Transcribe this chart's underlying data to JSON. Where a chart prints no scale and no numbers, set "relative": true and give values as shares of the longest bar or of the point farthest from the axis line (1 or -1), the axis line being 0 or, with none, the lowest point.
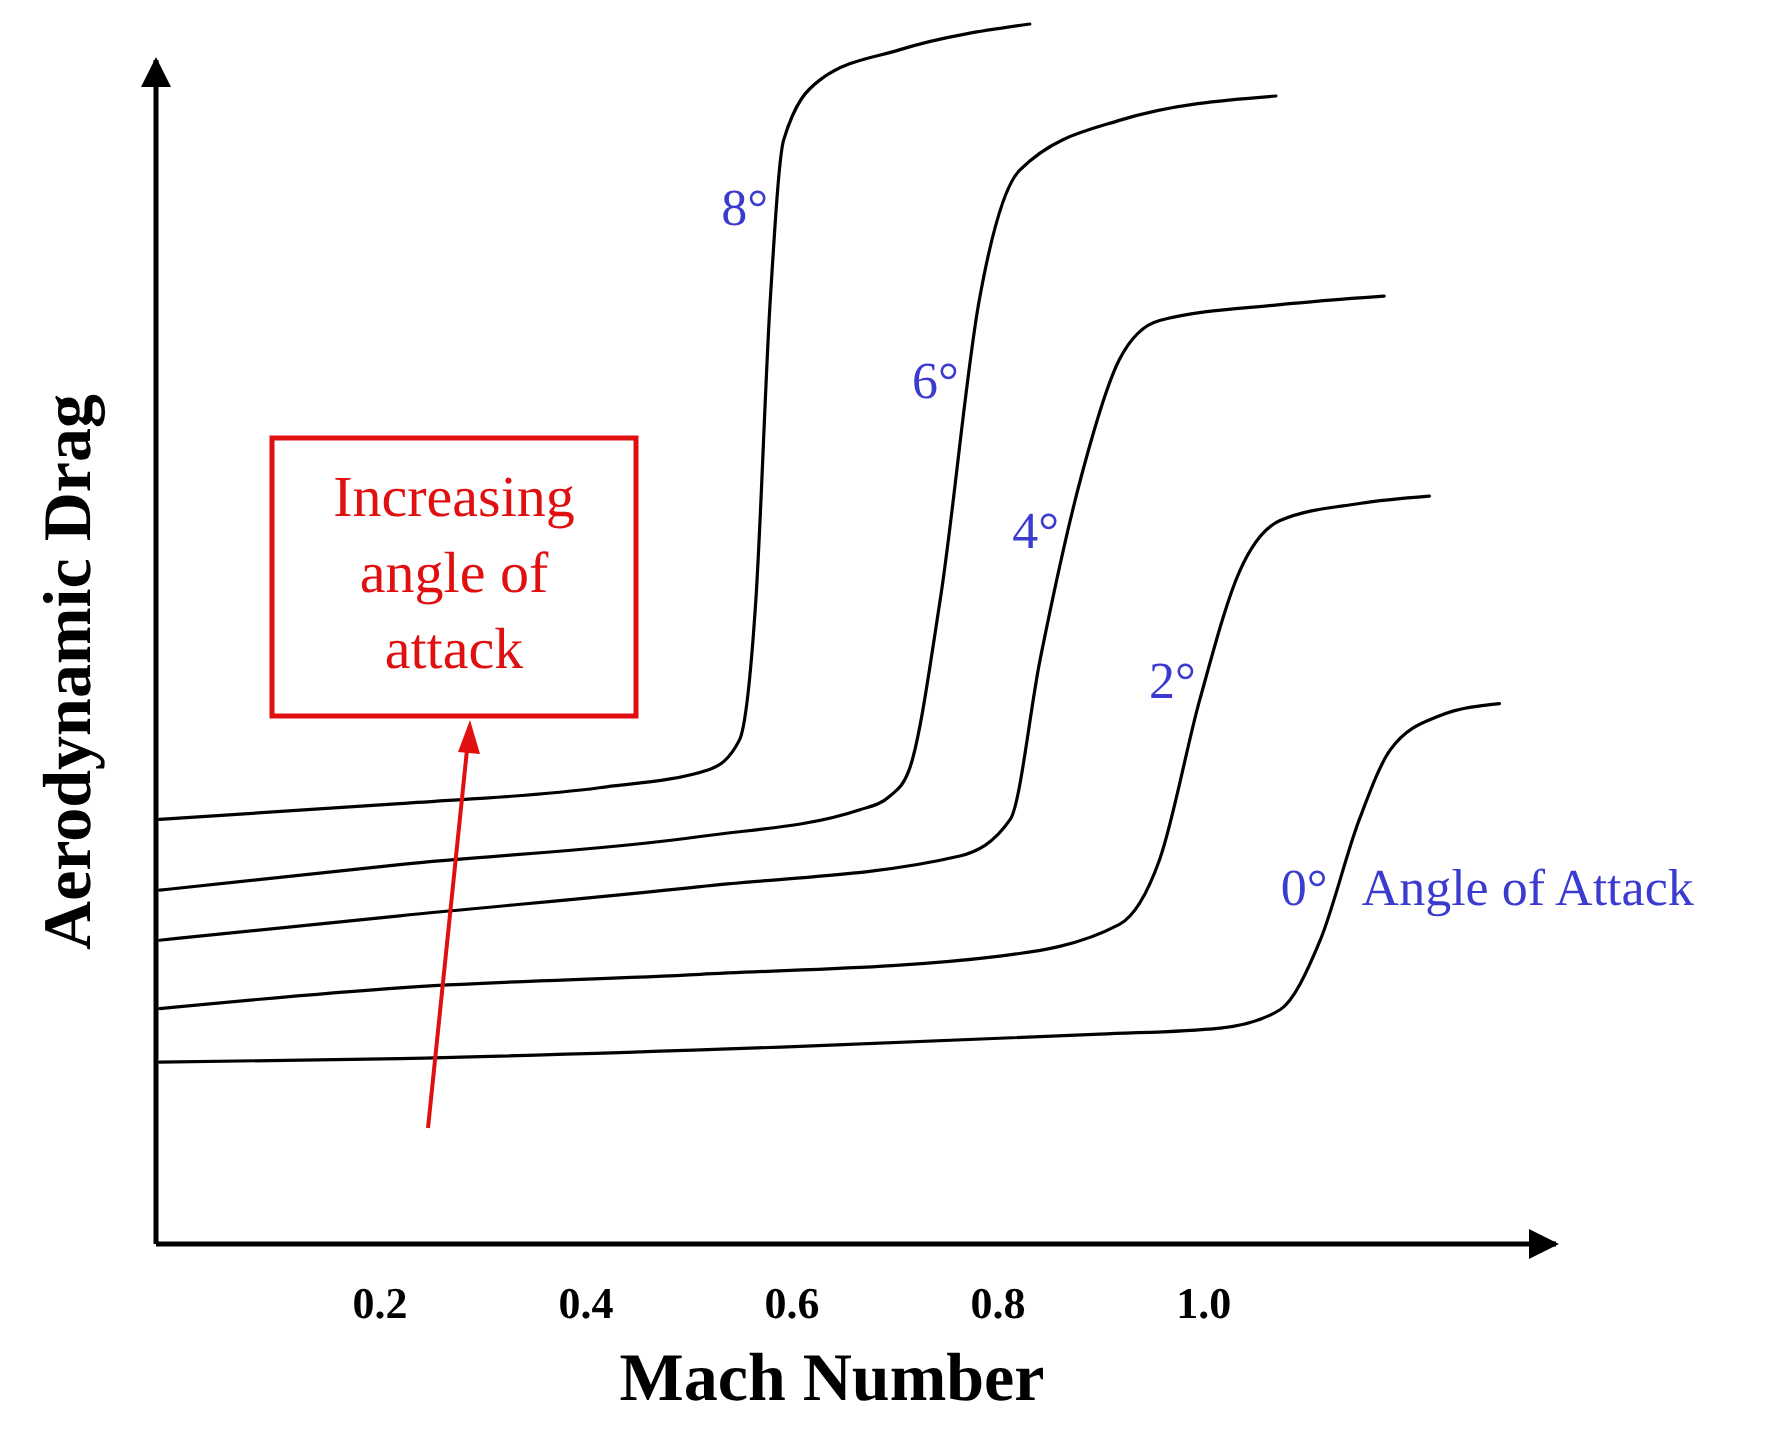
{
  "chart_data": {
    "type": "line",
    "relative": true,
    "xlabel": "Mach Number",
    "ylabel": "Aerodynamic Drag",
    "xlim": [
      -0.02,
      1.34
    ],
    "xticks": [
      0.2,
      0.4,
      0.6,
      0.8,
      {
        "value": 1,
        "label": "1.0"
      }
    ],
    "grid": false,
    "marker": "none",
    "line_style": "solid",
    "series": [
      {
        "name": "0°",
        "color": "#000000",
        "x": [
          -0.014,
          0.219,
          0.608,
          0.899,
          1.016,
          1.074,
          1.113,
          1.151,
          1.181,
          1.229,
          1.287
        ],
        "values": [
          0.149,
          0.152,
          0.162,
          0.172,
          0.177,
          0.192,
          0.249,
          0.348,
          0.405,
          0.433,
          0.443
        ]
      },
      {
        "name": "2°",
        "color": "#000000",
        "x": [
          -0.014,
          0.219,
          0.511,
          0.802,
          0.918,
          0.957,
          0.996,
          1.035,
          1.074,
          1.151,
          1.219
        ],
        "values": [
          0.193,
          0.21,
          0.221,
          0.236,
          0.262,
          0.315,
          0.446,
          0.552,
          0.593,
          0.607,
          0.613
        ]
      },
      {
        "name": "4°",
        "color": "#000000",
        "x": [
          -0.014,
          0.219,
          0.511,
          0.763,
          0.812,
          0.841,
          0.88,
          0.918,
          0.957,
          1.074,
          1.175
        ],
        "values": [
          0.249,
          0.269,
          0.293,
          0.318,
          0.348,
          0.479,
          0.626,
          0.725,
          0.757,
          0.77,
          0.777
        ]
      },
      {
        "name": "6°",
        "color": "#000000",
        "x": [
          -0.014,
          0.219,
          0.511,
          0.666,
          0.695,
          0.714,
          0.744,
          0.782,
          0.821,
          0.918,
          1.07
        ],
        "values": [
          0.29,
          0.311,
          0.334,
          0.356,
          0.367,
          0.389,
          0.528,
          0.774,
          0.88,
          0.921,
          0.941
        ]
      },
      {
        "name": "8°",
        "color": "#000000",
        "x": [
          -0.014,
          0.219,
          0.413,
          0.52,
          0.549,
          0.565,
          0.579,
          0.592,
          0.627,
          0.705,
          0.831
        ],
        "values": [
          0.348,
          0.361,
          0.374,
          0.389,
          0.413,
          0.528,
          0.774,
          0.905,
          0.954,
          0.979,
          1.0
        ]
      }
    ],
    "annotations": [
      "Angle of Attack",
      "Increasing angle of attack"
    ]
  }
}
